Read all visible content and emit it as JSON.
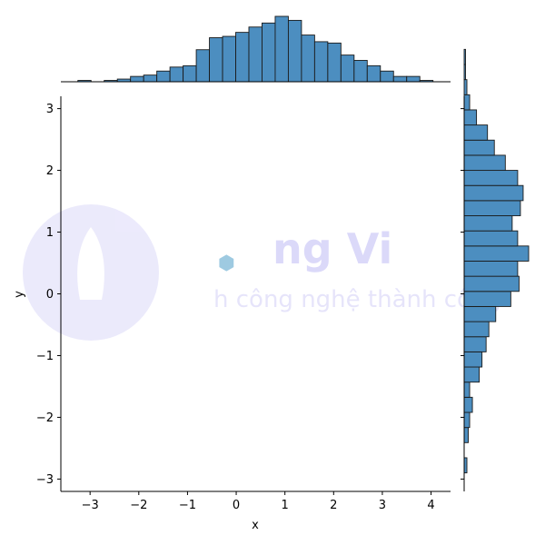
{
  "chart_data": {
    "type": "hexbin-jointplot",
    "xlabel": "x",
    "ylabel": "y",
    "xlim": [
      -3.6,
      4.4
    ],
    "ylim": [
      -3.2,
      3.2
    ],
    "x_ticks": [
      "−3",
      "−2",
      "−1",
      "0",
      "1",
      "2",
      "3",
      "4"
    ],
    "x_tick_values": [
      -3,
      -2,
      -1,
      0,
      1,
      2,
      3,
      4
    ],
    "y_ticks": [
      "−3",
      "−2",
      "−1",
      "0",
      "1",
      "2",
      "3"
    ],
    "y_tick_values": [
      -3,
      -2,
      -1,
      0,
      1,
      2,
      3
    ],
    "bar_color": "#4c8ec0",
    "bar_edge_color": "#1a1a1a",
    "hex_colormap": [
      "#ffffff",
      "#dbe9f6",
      "#9ecae1",
      "#4292c6",
      "#1f6fb4",
      "#0b3a6a",
      "#000000"
    ],
    "x_histogram": {
      "bin_start": -3.25,
      "bin_width": 0.27,
      "counts": [
        1,
        0,
        1,
        2,
        4,
        5,
        8,
        11,
        12,
        24,
        33,
        34,
        37,
        41,
        44,
        49,
        46,
        35,
        30,
        29,
        20,
        16,
        12,
        8,
        4,
        4,
        1
      ]
    },
    "y_histogram": {
      "bin_start": -2.9,
      "bin_width": 0.245,
      "counts": [
        2,
        0,
        3,
        4,
        6,
        4,
        11,
        13,
        16,
        18,
        23,
        34,
        40,
        39,
        47,
        39,
        35,
        41,
        43,
        39,
        30,
        22,
        17,
        9,
        4,
        2,
        1,
        1
      ]
    },
    "hexbins": [
      {
        "x": -0.2,
        "y": 0.5,
        "level": 2
      }
    ]
  },
  "watermark": {
    "text_main": "ng Vi",
    "text_sub": "h công nghệ thành công"
  }
}
